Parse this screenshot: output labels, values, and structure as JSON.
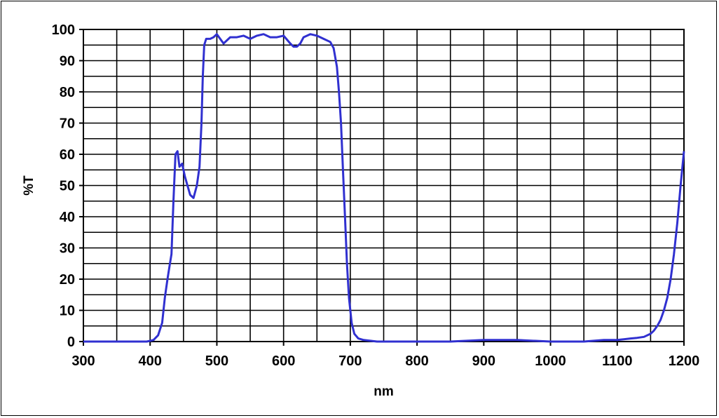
{
  "chart_data": {
    "type": "line",
    "xlabel": "nm",
    "ylabel": "%T",
    "xlim": [
      300,
      1200
    ],
    "ylim": [
      0,
      100
    ],
    "x_ticks": [
      300,
      400,
      500,
      600,
      700,
      800,
      900,
      1000,
      1100,
      1200
    ],
    "y_ticks": [
      0,
      10,
      20,
      30,
      40,
      50,
      60,
      70,
      80,
      90,
      100
    ],
    "x_grid_step": 50,
    "y_grid_step": 5,
    "grid": true,
    "legend": "none",
    "series_color": "#3030d0",
    "series": [
      {
        "x": [
          300,
          380,
          395,
          405,
          412,
          418,
          422,
          426,
          429,
          432,
          435,
          438,
          441,
          444,
          448,
          452,
          456,
          460,
          465,
          470,
          474,
          477,
          479,
          481,
          484,
          486,
          490,
          495,
          500,
          505,
          510,
          515,
          520,
          530,
          540,
          550,
          560,
          570,
          580,
          590,
          600,
          610,
          615,
          620,
          625,
          630,
          640,
          650,
          660,
          670,
          675,
          680,
          683,
          686,
          689,
          692,
          695,
          698,
          702,
          706,
          712,
          720,
          740,
          760,
          800,
          850,
          900,
          950,
          1000,
          1050,
          1080,
          1100,
          1120,
          1130,
          1140,
          1150,
          1155,
          1160,
          1165,
          1170,
          1175,
          1180,
          1185,
          1190,
          1195,
          1200
        ],
        "y": [
          0,
          0,
          0,
          0.5,
          2,
          6,
          14,
          20,
          24,
          28,
          45,
          60,
          61,
          56,
          57,
          53,
          50,
          47,
          46,
          50,
          56,
          70,
          85,
          95,
          97,
          97,
          97,
          97.5,
          98.5,
          97,
          95.5,
          96.5,
          97.5,
          97.5,
          98,
          97,
          98,
          98.5,
          97.5,
          97.5,
          98,
          95.5,
          94.5,
          94.5,
          95.5,
          97.5,
          98.5,
          98,
          97,
          96,
          94,
          88,
          80,
          70,
          55,
          40,
          25,
          14,
          6,
          2.5,
          1,
          0.5,
          0,
          0,
          0,
          0,
          0.5,
          0.5,
          0,
          0,
          0.5,
          0.5,
          1,
          1.2,
          1.5,
          2.5,
          3.5,
          5,
          7,
          10,
          14,
          20,
          28,
          38,
          50,
          61
        ]
      }
    ]
  }
}
